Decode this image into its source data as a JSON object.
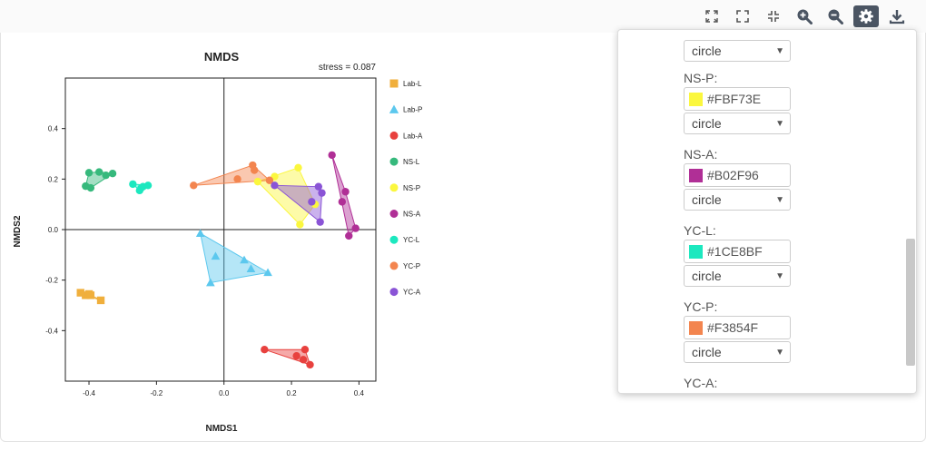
{
  "toolbar": {
    "icons": [
      "expand-icon",
      "fullscreen-icon",
      "compress-icon",
      "zoom-in-icon",
      "zoom-out-icon",
      "settings-icon",
      "download-icon"
    ]
  },
  "settings_panel": {
    "partial_top_shape": "circle",
    "groups": [
      {
        "label": "NS-P:",
        "color": "#FBF73E",
        "shape": "circle"
      },
      {
        "label": "NS-A:",
        "color": "#B02F96",
        "shape": "circle"
      },
      {
        "label": "YC-L:",
        "color": "#1CE8BF",
        "shape": "circle"
      },
      {
        "label": "YC-P:",
        "color": "#F3854F",
        "shape": "circle"
      },
      {
        "label": "YC-A:"
      }
    ]
  },
  "chart_data": {
    "type": "scatter",
    "title": "NMDS",
    "subtitle": "stress = 0.087",
    "xlabel": "NMDS1",
    "ylabel": "NMDS2",
    "xlim": [
      -0.47,
      0.45
    ],
    "ylim": [
      -0.6,
      0.6
    ],
    "xticks": [
      -0.4,
      -0.2,
      0.0,
      0.2,
      0.4
    ],
    "xtick_labels": [
      "-0.4",
      "-0.2",
      "0.0",
      "0.2",
      "0.4"
    ],
    "yticks": [
      0.4,
      0.2,
      0.0,
      -0.2,
      -0.4
    ],
    "ytick_labels": [
      "0.4",
      "0.2",
      "0.0",
      "-0.2",
      "-0.4"
    ],
    "grid": false,
    "zero_lines": true,
    "legend_position": "right",
    "series": [
      {
        "name": "Lab-L",
        "color": "#F0AF3C",
        "marker": "square",
        "points": [
          [
            -0.425,
            -0.25
          ],
          [
            -0.41,
            -0.26
          ],
          [
            -0.4,
            -0.255
          ],
          [
            -0.395,
            -0.26
          ],
          [
            -0.365,
            -0.28
          ]
        ]
      },
      {
        "name": "Lab-P",
        "color": "#5CC8EE",
        "marker": "triangle",
        "points": [
          [
            -0.07,
            -0.015
          ],
          [
            -0.04,
            -0.21
          ],
          [
            -0.025,
            -0.105
          ],
          [
            0.06,
            -0.12
          ],
          [
            0.08,
            -0.155
          ],
          [
            0.13,
            -0.17
          ]
        ]
      },
      {
        "name": "Lab-A",
        "color": "#E8413E",
        "marker": "circle",
        "points": [
          [
            0.12,
            -0.475
          ],
          [
            0.215,
            -0.5
          ],
          [
            0.24,
            -0.475
          ],
          [
            0.235,
            -0.515
          ],
          [
            0.255,
            -0.535
          ]
        ]
      },
      {
        "name": "NS-L",
        "color": "#36B97C",
        "marker": "circle",
        "points": [
          [
            -0.4,
            0.225
          ],
          [
            -0.37,
            0.228
          ],
          [
            -0.35,
            0.215
          ],
          [
            -0.33,
            0.222
          ],
          [
            -0.41,
            0.172
          ],
          [
            -0.395,
            0.165
          ]
        ]
      },
      {
        "name": "NS-P",
        "color": "#FBF73E",
        "marker": "circle",
        "points": [
          [
            0.1,
            0.19
          ],
          [
            0.15,
            0.21
          ],
          [
            0.22,
            0.245
          ],
          [
            0.225,
            0.02
          ],
          [
            0.27,
            0.1
          ]
        ]
      },
      {
        "name": "NS-A",
        "color": "#B02F96",
        "marker": "circle",
        "points": [
          [
            0.32,
            0.295
          ],
          [
            0.36,
            0.15
          ],
          [
            0.35,
            0.11
          ],
          [
            0.39,
            0.005
          ],
          [
            0.37,
            -0.025
          ]
        ]
      },
      {
        "name": "YC-L",
        "color": "#1CE8BF",
        "marker": "circle",
        "points": [
          [
            -0.27,
            0.18
          ],
          [
            -0.25,
            0.155
          ],
          [
            -0.24,
            0.17
          ],
          [
            -0.225,
            0.175
          ],
          [
            -0.245,
            0.165
          ]
        ]
      },
      {
        "name": "YC-P",
        "color": "#F3854F",
        "marker": "circle",
        "points": [
          [
            -0.09,
            0.175
          ],
          [
            0.04,
            0.2
          ],
          [
            0.085,
            0.255
          ],
          [
            0.09,
            0.235
          ],
          [
            0.135,
            0.195
          ]
        ]
      },
      {
        "name": "YC-A",
        "color": "#8A54D6",
        "marker": "circle",
        "points": [
          [
            0.15,
            0.175
          ],
          [
            0.26,
            0.11
          ],
          [
            0.28,
            0.17
          ],
          [
            0.29,
            0.145
          ],
          [
            0.285,
            0.03
          ]
        ]
      }
    ]
  }
}
